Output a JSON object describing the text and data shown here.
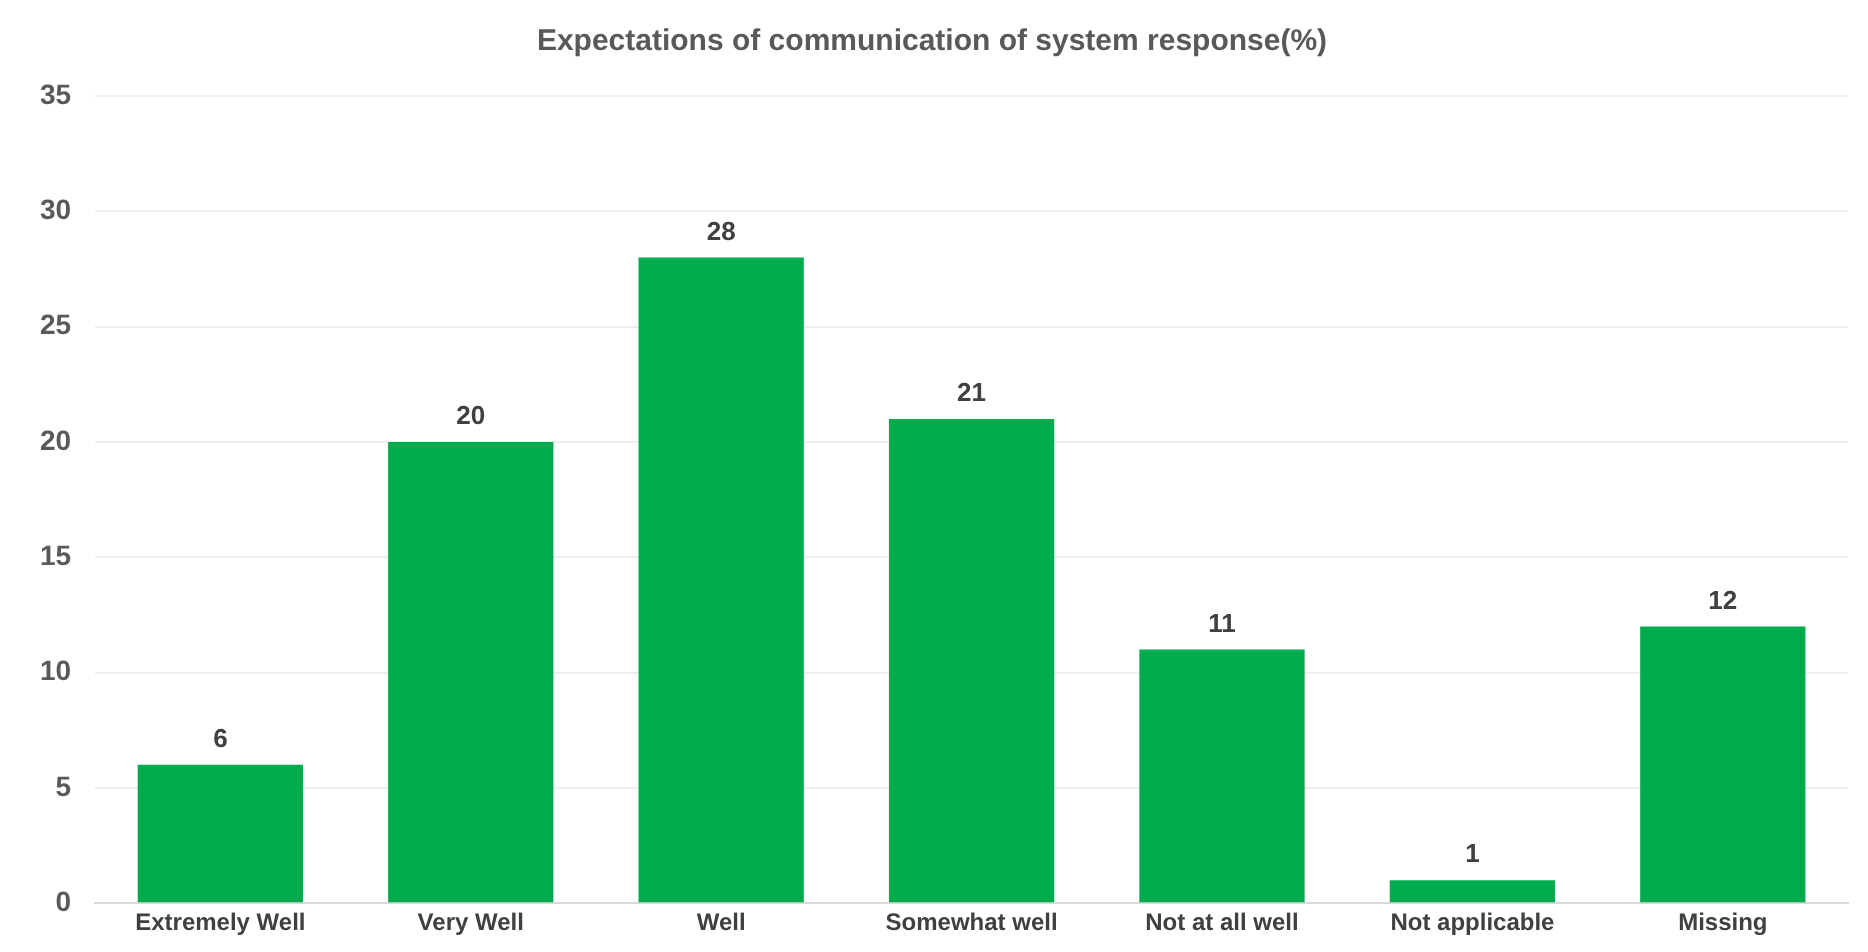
{
  "chart_data": {
    "type": "bar",
    "title": "Expectations of communication of system response(%)",
    "categories": [
      "Extremely Well",
      "Very Well",
      "Well",
      "Somewhat well",
      "Not at all well",
      "Not applicable",
      "Missing"
    ],
    "values": [
      6,
      20,
      28,
      21,
      11,
      1,
      12
    ],
    "color": "#00ab4e",
    "ylim": [
      0,
      35
    ],
    "yticks": [
      0,
      5,
      10,
      15,
      20,
      25,
      30,
      35
    ],
    "grid": "y",
    "data_labels": true
  }
}
